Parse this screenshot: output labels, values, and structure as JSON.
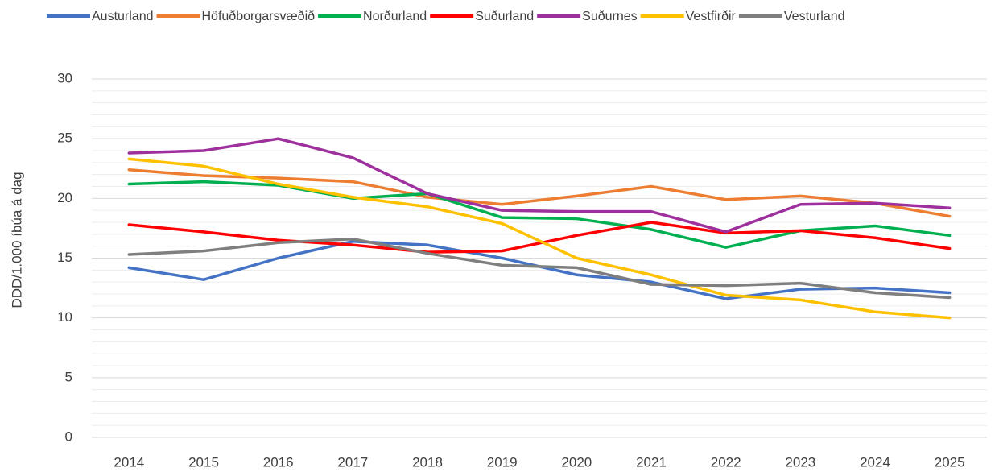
{
  "chart_data": {
    "type": "line",
    "y_label": "DDD/1.000 íbúa á dag",
    "categories": [
      "2014",
      "2015",
      "2016",
      "2017",
      "2018",
      "2019",
      "2020",
      "2021",
      "2022",
      "2023",
      "2024",
      "2025"
    ],
    "series": [
      {
        "name": "Austurland",
        "color": "#4472c4",
        "values": [
          14.2,
          13.2,
          15.0,
          16.4,
          16.1,
          15.0,
          13.6,
          13.0,
          11.6,
          12.4,
          12.5,
          12.1
        ]
      },
      {
        "name": "Höfuðborgarsvæðið",
        "color": "#ed7d31",
        "values": [
          22.4,
          21.9,
          21.7,
          21.4,
          20.1,
          19.5,
          20.2,
          21.0,
          19.9,
          20.2,
          19.6,
          18.5
        ]
      },
      {
        "name": "Norðurland",
        "color": "#00b050",
        "values": [
          21.2,
          21.4,
          21.1,
          20.0,
          20.4,
          18.4,
          18.3,
          17.4,
          15.9,
          17.3,
          17.7,
          16.9
        ]
      },
      {
        "name": "Suðurland",
        "color": "#ff0000",
        "values": [
          17.8,
          17.2,
          16.5,
          16.1,
          15.5,
          15.6,
          16.9,
          18.0,
          17.1,
          17.3,
          16.7,
          15.8
        ]
      },
      {
        "name": "Suðurnes",
        "color": "#9e309e",
        "values": [
          23.8,
          24.0,
          25.0,
          23.4,
          20.4,
          19.0,
          18.9,
          18.9,
          17.2,
          19.5,
          19.6,
          19.2
        ]
      },
      {
        "name": "Vestfirðir",
        "color": "#ffc000",
        "values": [
          23.3,
          22.7,
          21.2,
          20.1,
          19.3,
          17.9,
          15.0,
          13.6,
          11.9,
          11.5,
          10.5,
          10.0
        ]
      },
      {
        "name": "Vesturland",
        "color": "#7f7f7f",
        "values": [
          15.3,
          15.6,
          16.3,
          16.6,
          15.4,
          14.4,
          14.2,
          12.8,
          12.7,
          12.9,
          12.1,
          11.7
        ]
      }
    ],
    "ylim": [
      0,
      30
    ],
    "yticks": [
      0,
      5,
      10,
      15,
      20,
      25,
      30
    ],
    "grid": true,
    "minor_grid": true,
    "legend": "top"
  }
}
